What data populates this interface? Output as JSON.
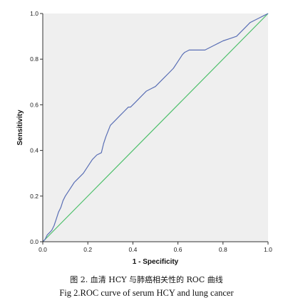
{
  "chart_data": {
    "type": "line",
    "title": "",
    "xlabel": "1 - Specificity",
    "ylabel": "Sensitivity",
    "xlim": [
      0,
      1
    ],
    "ylim": [
      0,
      1
    ],
    "x_ticks": [
      "0.0",
      "0.2",
      "0.4",
      "0.6",
      "0.8",
      "1.0"
    ],
    "y_ticks": [
      "0.0",
      "0.2",
      "0.4",
      "0.6",
      "0.8",
      "1.0"
    ],
    "grid": false,
    "legend": "none",
    "colors": {
      "roc": "#5a6fb5",
      "reference": "#4cbf6a",
      "plot_bg": "#efefef"
    },
    "series": [
      {
        "role": "roc",
        "x": [
          0,
          0.01,
          0.02,
          0.03,
          0.04,
          0.05,
          0.06,
          0.07,
          0.08,
          0.09,
          0.1,
          0.12,
          0.14,
          0.16,
          0.18,
          0.2,
          0.22,
          0.24,
          0.26,
          0.27,
          0.28,
          0.3,
          0.32,
          0.34,
          0.36,
          0.38,
          0.39,
          0.41,
          0.44,
          0.46,
          0.48,
          0.5,
          0.52,
          0.54,
          0.56,
          0.58,
          0.6,
          0.62,
          0.63,
          0.65,
          0.68,
          0.72,
          0.76,
          0.78,
          0.8,
          0.83,
          0.86,
          0.88,
          0.9,
          0.92,
          0.94,
          0.96,
          0.98,
          1.0
        ],
        "y": [
          0,
          0.01,
          0.03,
          0.04,
          0.05,
          0.07,
          0.1,
          0.13,
          0.15,
          0.18,
          0.2,
          0.23,
          0.26,
          0.28,
          0.3,
          0.33,
          0.36,
          0.38,
          0.39,
          0.43,
          0.46,
          0.51,
          0.53,
          0.55,
          0.57,
          0.59,
          0.59,
          0.61,
          0.64,
          0.66,
          0.67,
          0.68,
          0.7,
          0.72,
          0.74,
          0.76,
          0.79,
          0.82,
          0.83,
          0.84,
          0.84,
          0.84,
          0.86,
          0.87,
          0.88,
          0.89,
          0.9,
          0.92,
          0.94,
          0.96,
          0.97,
          0.98,
          0.99,
          1.0
        ]
      },
      {
        "role": "reference",
        "x": [
          0,
          1
        ],
        "y": [
          0,
          1
        ]
      }
    ]
  },
  "caption": {
    "zh": "图 2. 血清 HCY 与肺癌相关性的 ROC 曲线",
    "en": "Fig 2.ROC curve of serum HCY and lung cancer"
  }
}
